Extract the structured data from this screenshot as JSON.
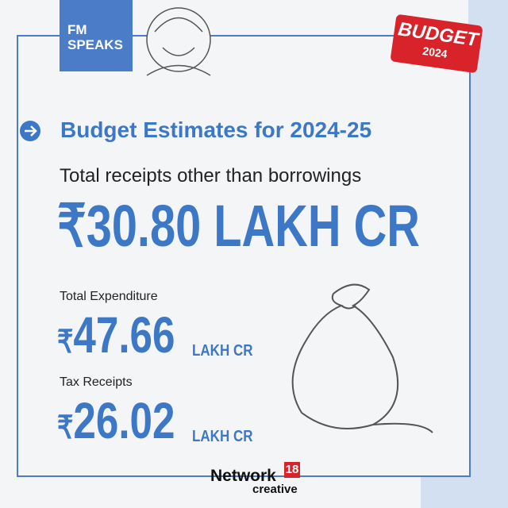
{
  "badge": {
    "line1": "FM",
    "line2": "SPEAKS"
  },
  "budget_badge": {
    "word": "BUDGET",
    "year": "2024"
  },
  "title": "Budget Estimates for 2024-25",
  "headline": {
    "label": "Total receipts other than borrowings",
    "currency": "₹",
    "amount": "30.80",
    "unit": "LAKH CR"
  },
  "items": [
    {
      "label": "Total Expenditure",
      "currency": "₹",
      "amount": "47.66",
      "unit": "LAKH CR"
    },
    {
      "label": "Tax Receipts",
      "currency": "₹",
      "amount": "26.02",
      "unit": "LAKH CR"
    }
  ],
  "footer": {
    "brand": "Network",
    "number": "18",
    "sub": "creative"
  }
}
